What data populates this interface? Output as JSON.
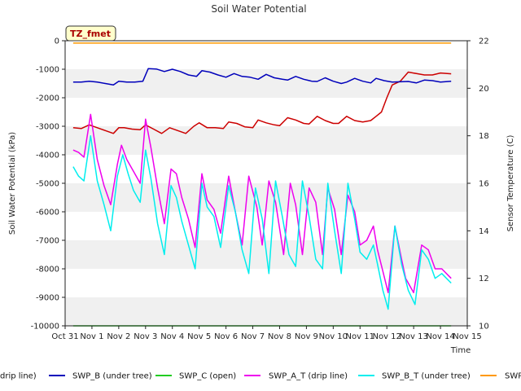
{
  "chart_data": {
    "type": "line",
    "title": "Soil Water Potential",
    "xlabel": "Time",
    "ylabel": "Soil Water Potential (kPa)",
    "y2label": "Sensor Temperature (C)",
    "station_tag": "TZ_fmet",
    "x_tick_labels": [
      "Oct 31",
      "Nov 1",
      "Nov 2",
      "Nov 3",
      "Nov 4",
      "Nov 5",
      "Nov 6",
      "Nov 7",
      "Nov 8",
      "Nov 9",
      "Nov 10",
      "Nov 11",
      "Nov 12",
      "Nov 13",
      "Nov 14",
      "Nov 15"
    ],
    "y_ticks": [
      0,
      -1000,
      -2000,
      -3000,
      -4000,
      -5000,
      -6000,
      -7000,
      -8000,
      -9000,
      -10000
    ],
    "y_tick_labels": [
      "0",
      "-1000",
      "-2000",
      "-3000",
      "-4000",
      "-5000",
      "-6000",
      "-7000",
      "-8000",
      "-9000",
      "-10000"
    ],
    "y2_ticks": [
      10,
      12,
      14,
      16,
      18,
      20,
      22
    ],
    "y2_tick_labels": [
      "10",
      "12",
      "14",
      "16",
      "18",
      "20",
      "22"
    ],
    "xlim": [
      0,
      15
    ],
    "ylim": [
      -10000,
      0
    ],
    "y2lim": [
      10,
      22
    ],
    "grid": "horizontal bands",
    "legend_position": "bottom",
    "series": [
      {
        "name": "SWP_A (drip line)",
        "legend_label": "drip line)",
        "color": "#cc0000",
        "axis": "left",
        "x": [
          0.3,
          0.6,
          0.9,
          1.2,
          1.5,
          1.8,
          2.0,
          2.2,
          2.5,
          2.8,
          3.0,
          3.3,
          3.6,
          3.9,
          4.2,
          4.5,
          4.8,
          5.0,
          5.3,
          5.6,
          5.9,
          6.1,
          6.4,
          6.7,
          7.0,
          7.2,
          7.5,
          7.8,
          8.0,
          8.3,
          8.6,
          8.9,
          9.1,
          9.4,
          9.7,
          10.0,
          10.2,
          10.5,
          10.8,
          11.1,
          11.4,
          11.6,
          11.8,
          12.0,
          12.2,
          12.5,
          12.8,
          13.1,
          13.4,
          13.7,
          14.0,
          14.4
        ],
        "y": [
          -3050,
          -3080,
          -2950,
          -3050,
          -3150,
          -3250,
          -3050,
          -3050,
          -3100,
          -3120,
          -2950,
          -3100,
          -3250,
          -3050,
          -3150,
          -3250,
          -3000,
          -2880,
          -3050,
          -3050,
          -3080,
          -2850,
          -2900,
          -3020,
          -3050,
          -2780,
          -2880,
          -2950,
          -2980,
          -2700,
          -2780,
          -2900,
          -2920,
          -2650,
          -2800,
          -2900,
          -2900,
          -2650,
          -2800,
          -2850,
          -2800,
          -2650,
          -2500,
          -2000,
          -1550,
          -1420,
          -1100,
          -1150,
          -1200,
          -1200,
          -1130,
          -1160
        ]
      },
      {
        "name": "SWP_B (under tree)",
        "legend_label": "SWP_B (under tree)",
        "color": "#0000bb",
        "axis": "left",
        "x": [
          0.3,
          0.6,
          0.9,
          1.2,
          1.5,
          1.8,
          2.0,
          2.3,
          2.6,
          2.9,
          3.1,
          3.4,
          3.7,
          4.0,
          4.3,
          4.6,
          4.9,
          5.1,
          5.4,
          5.7,
          6.0,
          6.3,
          6.6,
          6.9,
          7.2,
          7.5,
          7.8,
          8.1,
          8.3,
          8.6,
          8.9,
          9.2,
          9.4,
          9.7,
          10.0,
          10.3,
          10.5,
          10.8,
          11.1,
          11.4,
          11.6,
          11.9,
          12.2,
          12.5,
          12.8,
          13.1,
          13.4,
          13.7,
          14.0,
          14.4
        ],
        "y": [
          -1450,
          -1450,
          -1420,
          -1450,
          -1500,
          -1550,
          -1420,
          -1450,
          -1450,
          -1420,
          -980,
          -990,
          -1080,
          -1000,
          -1080,
          -1200,
          -1250,
          -1050,
          -1100,
          -1200,
          -1280,
          -1150,
          -1250,
          -1280,
          -1350,
          -1180,
          -1300,
          -1350,
          -1380,
          -1250,
          -1350,
          -1420,
          -1430,
          -1300,
          -1420,
          -1500,
          -1450,
          -1320,
          -1420,
          -1480,
          -1320,
          -1400,
          -1450,
          -1440,
          -1430,
          -1480,
          -1380,
          -1400,
          -1450,
          -1420
        ]
      },
      {
        "name": "SWP_C (open)",
        "legend_label": "SWP_C (open)",
        "color": "#22cc22",
        "axis": "left",
        "x": [
          0.3,
          14.4
        ],
        "y": [
          -10000,
          -10000
        ]
      },
      {
        "name": "SWP_A_T (drip line)",
        "legend_label": "SWP_A_T (drip line)",
        "color": "#ee00ee",
        "axis": "right",
        "x": [
          0.3,
          0.5,
          0.7,
          0.95,
          1.2,
          1.45,
          1.7,
          1.95,
          2.1,
          2.3,
          2.55,
          2.8,
          3.0,
          3.2,
          3.45,
          3.7,
          3.95,
          4.15,
          4.35,
          4.6,
          4.85,
          5.1,
          5.3,
          5.55,
          5.8,
          6.1,
          6.35,
          6.6,
          6.85,
          7.15,
          7.35,
          7.6,
          7.85,
          8.15,
          8.4,
          8.6,
          8.85,
          9.1,
          9.35,
          9.6,
          9.8,
          10.05,
          10.3,
          10.55,
          10.8,
          11.0,
          11.25,
          11.5,
          11.65,
          11.85,
          12.05,
          12.3,
          12.55,
          12.7,
          13.0,
          13.3,
          13.55,
          13.8,
          14.05,
          14.4
        ],
        "y": [
          17.4,
          17.3,
          17.1,
          18.9,
          17.0,
          15.9,
          15.1,
          16.8,
          17.6,
          17.0,
          16.5,
          16.0,
          18.7,
          17.5,
          15.8,
          14.3,
          16.6,
          16.4,
          15.4,
          14.5,
          13.3,
          16.4,
          15.3,
          14.9,
          13.9,
          16.3,
          14.8,
          13.4,
          16.3,
          15.0,
          13.4,
          16.1,
          15.2,
          13.0,
          16.0,
          15.1,
          13.0,
          15.8,
          15.2,
          13.0,
          15.8,
          14.9,
          13.0,
          15.5,
          14.8,
          13.4,
          13.6,
          14.2,
          13.2,
          12.3,
          11.4,
          14.2,
          12.8,
          12.0,
          11.4,
          13.4,
          13.2,
          12.4,
          12.4,
          12.0
        ]
      },
      {
        "name": "SWP_B_T (under tree)",
        "legend_label": "SWP_B_T (under tree)",
        "color": "#00eeee",
        "axis": "right",
        "x": [
          0.3,
          0.5,
          0.7,
          0.95,
          1.2,
          1.45,
          1.7,
          1.95,
          2.15,
          2.35,
          2.55,
          2.8,
          3.0,
          3.2,
          3.45,
          3.7,
          3.95,
          4.15,
          4.35,
          4.6,
          4.85,
          5.1,
          5.3,
          5.55,
          5.8,
          6.1,
          6.35,
          6.6,
          6.85,
          7.1,
          7.35,
          7.6,
          7.85,
          8.1,
          8.35,
          8.6,
          8.85,
          9.1,
          9.35,
          9.6,
          9.8,
          10.05,
          10.3,
          10.55,
          10.8,
          11.0,
          11.25,
          11.5,
          11.65,
          11.85,
          12.05,
          12.3,
          12.55,
          12.8,
          13.05,
          13.3,
          13.55,
          13.8,
          14.05,
          14.4
        ],
        "y": [
          16.7,
          16.3,
          16.1,
          18.0,
          16.1,
          15.1,
          14.0,
          16.3,
          17.2,
          16.4,
          15.7,
          15.2,
          17.4,
          16.2,
          14.3,
          13.0,
          15.9,
          15.4,
          14.4,
          13.4,
          12.4,
          16.0,
          15.0,
          14.6,
          13.3,
          15.9,
          14.8,
          13.2,
          12.2,
          15.8,
          14.5,
          12.2,
          16.1,
          14.6,
          13.0,
          12.5,
          16.1,
          14.6,
          12.8,
          12.4,
          16.0,
          14.0,
          12.2,
          16.0,
          14.5,
          13.1,
          12.8,
          13.4,
          12.6,
          11.5,
          10.7,
          14.2,
          12.6,
          11.5,
          10.9,
          13.2,
          12.8,
          12.0,
          12.2,
          11.8
        ]
      },
      {
        "name": "SWP_C_T (open)",
        "legend_label": "SWP",
        "color": "#ff9900",
        "axis": "right",
        "x": [
          0.3,
          14.4
        ],
        "y": [
          21.9,
          21.9
        ]
      }
    ]
  }
}
